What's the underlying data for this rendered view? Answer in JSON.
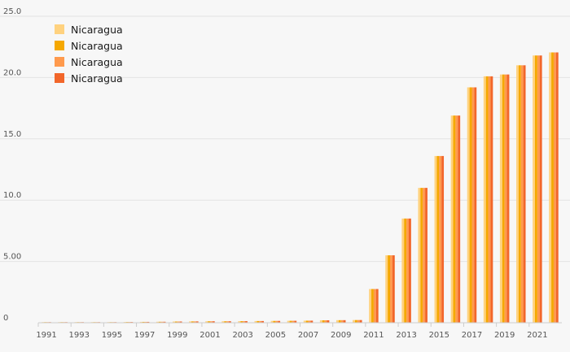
{
  "chart_data": {
    "type": "bar",
    "categories": [
      "1991",
      "1992",
      "1993",
      "1994",
      "1995",
      "1996",
      "1997",
      "1998",
      "1999",
      "2000",
      "2001",
      "2002",
      "2003",
      "2004",
      "2005",
      "2006",
      "2007",
      "2008",
      "2009",
      "2010",
      "2011",
      "2012",
      "2013",
      "2014",
      "2015",
      "2016",
      "2017",
      "2018",
      "2019",
      "2020",
      "2021",
      "2022"
    ],
    "x_tick_labels": [
      "1991",
      "1993",
      "1995",
      "1997",
      "1999",
      "2001",
      "2003",
      "2005",
      "2007",
      "2009",
      "2011",
      "2013",
      "2015",
      "2017",
      "2019",
      "2021"
    ],
    "y_tick_labels": [
      "0",
      "5.00",
      "10.0",
      "15.0",
      "20.0",
      "25.0"
    ],
    "ylim": [
      0,
      25
    ],
    "grid": true,
    "legend_position": "top-left",
    "series": [
      {
        "name": "Nicaragua",
        "color": "#ffd27f",
        "values": [
          0.05,
          0.05,
          0.05,
          0.05,
          0.05,
          0.06,
          0.07,
          0.08,
          0.1,
          0.11,
          0.12,
          0.12,
          0.13,
          0.14,
          0.15,
          0.16,
          0.17,
          0.2,
          0.21,
          0.22,
          2.75,
          5.5,
          8.5,
          11.0,
          13.6,
          16.9,
          19.2,
          20.1,
          20.25,
          21.0,
          21.8,
          22.05
        ]
      },
      {
        "name": "Nicaragua",
        "color": "#f5a800",
        "values": [
          0.05,
          0.05,
          0.05,
          0.05,
          0.05,
          0.06,
          0.07,
          0.08,
          0.1,
          0.11,
          0.12,
          0.12,
          0.13,
          0.14,
          0.15,
          0.16,
          0.17,
          0.2,
          0.21,
          0.22,
          2.75,
          5.5,
          8.5,
          11.0,
          13.6,
          16.9,
          19.2,
          20.1,
          20.25,
          21.0,
          21.8,
          22.05
        ]
      },
      {
        "name": "Nicaragua",
        "color": "#ff9a4d",
        "values": [
          0.05,
          0.05,
          0.05,
          0.05,
          0.05,
          0.06,
          0.07,
          0.08,
          0.1,
          0.11,
          0.12,
          0.12,
          0.13,
          0.14,
          0.15,
          0.16,
          0.17,
          0.2,
          0.21,
          0.22,
          2.75,
          5.5,
          8.5,
          11.0,
          13.6,
          16.9,
          19.2,
          20.1,
          20.25,
          21.0,
          21.8,
          22.05
        ]
      },
      {
        "name": "Nicaragua",
        "color": "#f2662a",
        "values": [
          0.05,
          0.05,
          0.05,
          0.05,
          0.05,
          0.06,
          0.07,
          0.08,
          0.1,
          0.11,
          0.12,
          0.12,
          0.13,
          0.14,
          0.15,
          0.16,
          0.17,
          0.2,
          0.21,
          0.22,
          2.75,
          5.5,
          8.5,
          11.0,
          13.6,
          16.9,
          19.2,
          20.1,
          20.25,
          21.0,
          21.8,
          22.05
        ]
      }
    ]
  }
}
